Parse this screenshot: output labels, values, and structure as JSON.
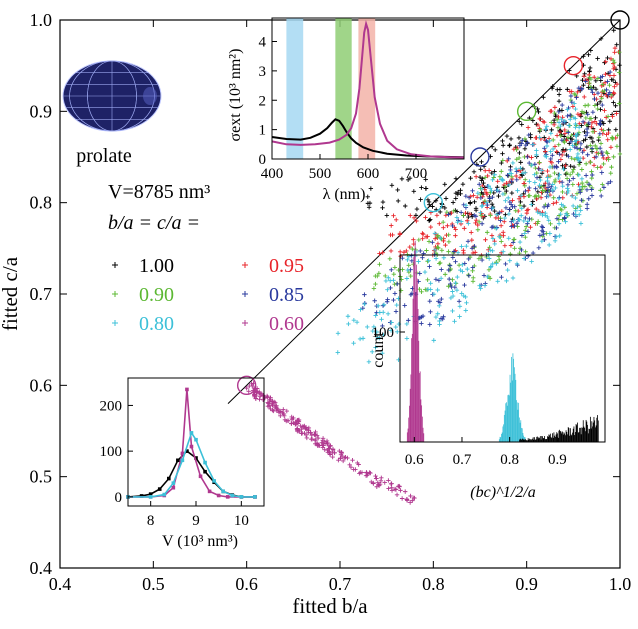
{
  "chart_data": [
    {
      "type": "scatter",
      "title": "",
      "xlabel": "fitted b/a",
      "ylabel": "fitted c/a",
      "xlim": [
        0.4,
        1.0
      ],
      "ylim": [
        0.4,
        1.0
      ],
      "x_ticks": [
        "0.4",
        "0.5",
        "0.6",
        "0.7",
        "0.8",
        "0.9",
        "1.0"
      ],
      "y_ticks": [
        "0.4",
        "0.5",
        "0.6",
        "0.7",
        "0.8",
        "0.9",
        "1.0"
      ],
      "shape_label": "prolate",
      "volume_label": "V=8785 nm³",
      "legend_title": "b/a = c/a =",
      "legend_position": "upper-left",
      "diagonal_line": {
        "x": [
          0.58,
          1.0
        ],
        "y": [
          0.58,
          1.0
        ]
      },
      "series": [
        {
          "name": "1.00",
          "color": "#000000",
          "true_value": 1.0,
          "x_range": [
            0.72,
            1.0
          ],
          "y_ratio_range": [
            0.88,
            1.0
          ],
          "center": [
            0.93,
            0.88
          ]
        },
        {
          "name": "0.95",
          "color": "#e8242a",
          "true_value": 0.95,
          "x_range": [
            0.74,
            1.0
          ],
          "y_ratio_range": [
            0.85,
            0.98
          ],
          "center": [
            0.92,
            0.84
          ]
        },
        {
          "name": "0.90",
          "color": "#5cb833",
          "true_value": 0.9,
          "x_range": [
            0.73,
            1.0
          ],
          "y_ratio_range": [
            0.83,
            0.97
          ],
          "center": [
            0.9,
            0.81
          ]
        },
        {
          "name": "0.85",
          "color": "#2a3a9e",
          "true_value": 0.85,
          "x_range": [
            0.72,
            0.99
          ],
          "y_ratio_range": [
            0.82,
            0.97
          ],
          "center": [
            0.86,
            0.79
          ]
        },
        {
          "name": "0.80",
          "color": "#3cc0d8",
          "true_value": 0.8,
          "x_range": [
            0.69,
            0.96
          ],
          "y_ratio_range": [
            0.81,
            0.96
          ],
          "center": [
            0.82,
            0.75
          ]
        },
        {
          "name": "0.60",
          "color": "#b0388f",
          "x": [
            0.6,
            0.62,
            0.64,
            0.66,
            0.68,
            0.7,
            0.72,
            0.74,
            0.76,
            0.78
          ],
          "y": [
            0.6,
            0.585,
            0.568,
            0.552,
            0.537,
            0.522,
            0.508,
            0.495,
            0.485,
            0.475
          ]
        }
      ]
    },
    {
      "type": "line",
      "title": "",
      "xlabel": "λ (nm)",
      "ylabel": "σext (10³ nm²)",
      "xlim": [
        400,
        800
      ],
      "ylim": [
        0,
        4.8
      ],
      "x_ticks": [
        "400",
        "500",
        "600",
        "700"
      ],
      "y_ticks": [
        "0",
        "1",
        "2",
        "3",
        "4"
      ],
      "bands": [
        {
          "color": "#a6d8f2",
          "from": 430,
          "to": 465
        },
        {
          "color": "#8fce74",
          "from": 532,
          "to": 566
        },
        {
          "color": "#f3b3a8",
          "from": 580,
          "to": 615
        }
      ],
      "series": [
        {
          "color": "#000000",
          "x": [
            400,
            430,
            460,
            480,
            500,
            515,
            525,
            532,
            540,
            548,
            556,
            565,
            575,
            590,
            610,
            640,
            680,
            720,
            760,
            800
          ],
          "y": [
            0.75,
            0.68,
            0.66,
            0.72,
            0.86,
            1.05,
            1.24,
            1.35,
            1.3,
            1.12,
            0.9,
            0.7,
            0.55,
            0.4,
            0.28,
            0.18,
            0.12,
            0.09,
            0.07,
            0.06
          ]
        },
        {
          "color": "#b0388f",
          "x": [
            400,
            430,
            460,
            490,
            520,
            540,
            555,
            565,
            575,
            582,
            588,
            592,
            596,
            600,
            606,
            614,
            625,
            640,
            660,
            690,
            730,
            770,
            800
          ],
          "y": [
            0.6,
            0.5,
            0.48,
            0.5,
            0.56,
            0.66,
            0.82,
            1.05,
            1.55,
            2.4,
            3.5,
            4.3,
            4.6,
            4.4,
            3.4,
            2.1,
            1.2,
            0.62,
            0.33,
            0.16,
            0.09,
            0.06,
            0.05
          ]
        }
      ]
    },
    {
      "type": "bar",
      "title": "",
      "xlabel": "(bc)^1/2/a",
      "ylabel": "count",
      "xlim": [
        0.57,
        1.0
      ],
      "ylim": [
        0,
        170
      ],
      "x_ticks": [
        "0.6",
        "0.7",
        "0.8",
        "0.9"
      ],
      "y_ticks": [
        "100"
      ],
      "series": [
        {
          "color": "#b0388f",
          "center": 0.602,
          "width": 0.007,
          "peak": 160
        },
        {
          "color": "#3cc0d8",
          "center": 0.805,
          "width": 0.011,
          "peak": 65
        },
        {
          "color": "#000000",
          "range": [
            0.82,
            0.985
          ],
          "shape": "rising",
          "start": 2,
          "end": 18
        }
      ]
    },
    {
      "type": "line",
      "title": "",
      "xlabel": "V (10³ nm³)",
      "ylabel": "",
      "xlim": [
        7.5,
        10.5
      ],
      "ylim": [
        -20,
        260
      ],
      "x_ticks": [
        "8",
        "9",
        "10"
      ],
      "y_ticks": [
        "0",
        "100",
        "200"
      ],
      "series": [
        {
          "color": "#000000",
          "x": [
            7.5,
            7.8,
            8.0,
            8.2,
            8.4,
            8.6,
            8.8,
            9.0,
            9.2,
            9.4,
            9.6,
            9.8,
            10.0,
            10.3
          ],
          "y": [
            0,
            2,
            6,
            17,
            40,
            80,
            100,
            85,
            55,
            32,
            12,
            4,
            0,
            0
          ]
        },
        {
          "color": "#b0388f",
          "x": [
            7.5,
            8.0,
            8.3,
            8.5,
            8.7,
            8.8,
            8.9,
            9.1,
            9.3,
            9.5,
            9.7,
            10.0,
            10.3
          ],
          "y": [
            0,
            0,
            3,
            20,
            95,
            235,
            110,
            45,
            12,
            3,
            0,
            0,
            0
          ]
        },
        {
          "color": "#3cc0d8",
          "x": [
            7.5,
            8.0,
            8.3,
            8.5,
            8.7,
            8.9,
            9.0,
            9.2,
            9.4,
            9.6,
            9.8,
            10.0,
            10.3
          ],
          "y": [
            0,
            0,
            5,
            30,
            80,
            140,
            125,
            75,
            35,
            12,
            3,
            0,
            0
          ]
        }
      ]
    }
  ]
}
